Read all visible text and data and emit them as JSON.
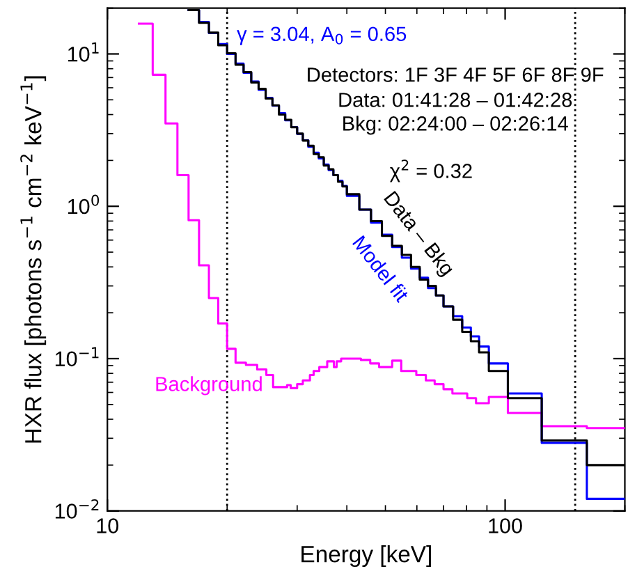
{
  "chart_data": {
    "type": "step",
    "xlabel": "Energy [keV]",
    "ylabel": "HXR flux [photons s$^{−1}$ cm$^{−2}$ keV$^{−1}$]",
    "log": "xy",
    "xlim": [
      10,
      200
    ],
    "ylim": [
      0.01,
      20
    ],
    "xticks": [
      10,
      100
    ],
    "yticks": [
      {
        "value": 0.01,
        "label": "10$^{−2}$"
      },
      {
        "value": 0.1,
        "label": "10$^{−1}$"
      },
      {
        "value": 1,
        "label": "10$^{0}$"
      },
      {
        "value": 10,
        "label": "10$^{1}$"
      }
    ],
    "series": [
      {
        "name": "Data – Bkg",
        "color": "#000000",
        "x": [
          16,
          17,
          18,
          19,
          20,
          21,
          22,
          23,
          24,
          25,
          26,
          27,
          28,
          29,
          30,
          31,
          32,
          33,
          34,
          35,
          36,
          37,
          38,
          39,
          40,
          43,
          46,
          49,
          52,
          55,
          58,
          61,
          64,
          67,
          70,
          74,
          78,
          82,
          86,
          91,
          101.6,
          123.6,
          160.5,
          200
        ],
        "values": [
          19.4,
          16.0,
          13.8,
          11.4,
          10.1,
          8.5,
          7.6,
          6.5,
          5.9,
          5.1,
          4.6,
          4.0,
          3.7,
          3.3,
          3.0,
          2.7,
          2.5,
          2.2,
          2.1,
          1.85,
          1.75,
          1.6,
          1.45,
          1.35,
          1.2,
          0.95,
          0.8,
          0.64,
          0.55,
          0.48,
          0.4,
          0.33,
          0.3,
          0.26,
          0.22,
          0.18,
          0.15,
          0.13,
          0.11,
          0.083,
          0.055,
          0.029,
          0.02,
          0.02
        ]
      },
      {
        "name": "Model fit",
        "color": "#0000ff",
        "x": [
          16,
          17,
          18,
          19,
          20,
          21,
          22,
          23,
          24,
          25,
          26,
          27,
          28,
          29,
          30,
          31,
          32,
          33,
          34,
          35,
          36,
          37,
          38,
          39,
          40,
          43,
          46,
          49,
          52,
          55,
          58,
          61,
          64,
          67,
          70,
          74,
          78,
          82,
          86,
          91,
          101.6,
          123.6,
          160.5,
          200
        ],
        "values": [
          19.4,
          16.2,
          13.7,
          11.6,
          10.0,
          8.65,
          7.53,
          6.6,
          5.82,
          5.15,
          4.58,
          4.09,
          3.67,
          3.31,
          2.99,
          2.71,
          2.46,
          2.25,
          2.06,
          1.88,
          1.73,
          1.6,
          1.47,
          1.36,
          1.17,
          0.95,
          0.78,
          0.65,
          0.54,
          0.46,
          0.39,
          0.34,
          0.29,
          0.26,
          0.22,
          0.19,
          0.16,
          0.14,
          0.12,
          0.093,
          0.059,
          0.028,
          0.012,
          0.012
        ]
      },
      {
        "name": "Background",
        "color": "#ff00ff",
        "x": [
          12,
          13,
          14,
          15,
          16,
          17,
          18,
          19,
          20,
          21,
          22.3,
          23.8,
          25.1,
          26.1,
          28.3,
          28.9,
          30,
          31,
          32.3,
          33,
          34.1,
          35.7,
          36.1,
          37.1,
          37.7,
          38.7,
          43.4,
          45.8,
          48.2,
          50.9,
          52,
          54.8,
          57.4,
          59.8,
          63.2,
          66.5,
          70,
          73.7,
          80.3,
          84.5,
          91,
          101.6,
          123.6,
          160.5,
          200
        ],
        "values": [
          15.8,
          7.3,
          3.5,
          1.6,
          0.81,
          0.41,
          0.25,
          0.17,
          0.116,
          0.094,
          0.091,
          0.085,
          0.078,
          0.065,
          0.067,
          0.064,
          0.068,
          0.072,
          0.078,
          0.083,
          0.088,
          0.096,
          0.096,
          0.088,
          0.096,
          0.1,
          0.098,
          0.093,
          0.088,
          0.088,
          0.097,
          0.083,
          0.083,
          0.078,
          0.072,
          0.068,
          0.063,
          0.059,
          0.055,
          0.051,
          0.056,
          0.044,
          0.036,
          0.035,
          0.035
        ]
      }
    ],
    "ref_lines": [
      {
        "axis": "x",
        "value": 20,
        "color": "#000000",
        "line_style": "dotted"
      },
      {
        "axis": "x",
        "value": 150,
        "color": "#000000",
        "line_style": "dotted"
      }
    ],
    "annotations": [
      "γ = 3.04, A$_{0}$ = 0.65",
      "Detectors: 1F 3F 4F 5F 6F 8F 9F",
      "Data: 01:41:28 – 01:42:28",
      "Bkg: 02:24:00 – 02:26:14",
      "χ$^{2}$ = 0.32"
    ]
  }
}
